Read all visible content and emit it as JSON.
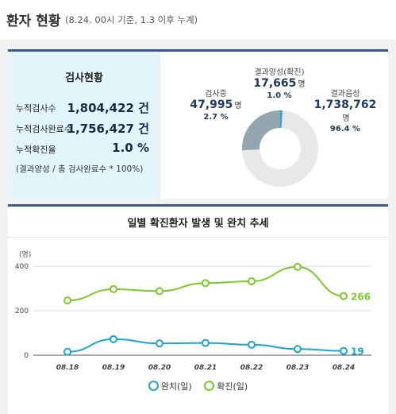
{
  "header": {
    "title": "환자 현황",
    "subtitle": "(8.24. 00시 기준, 1.3 이후 누계)"
  },
  "test_status": {
    "title": "검사현황",
    "rows": [
      {
        "label": "누적검사수",
        "value": "1,804,422 건"
      },
      {
        "label": "누적검사완료수",
        "value": "1,756,427 건"
      },
      {
        "label": "누적확진율",
        "value": "1.0 %"
      }
    ],
    "note": "(결과양성 / 총 검사완료수 * 100%)"
  },
  "donut": {
    "testing": {
      "name": "검사중",
      "value": "47,995",
      "unit": "명",
      "pct": "2.7 %"
    },
    "positive": {
      "name": "결과양성(확진)",
      "value": "17,665",
      "unit": "명",
      "pct": "1.0 %"
    },
    "negative": {
      "name": "결과음성",
      "value": "1,738,762",
      "unit": "명",
      "pct": "96.4 %"
    },
    "colors": {
      "testing": "#93a5ae",
      "positive": "#2aa8dd",
      "negative": "#e8e8e8"
    }
  },
  "chart_panel": {
    "title": "일별 확진환자 발생 및 완치 추세"
  },
  "chart_data": {
    "type": "line",
    "title": "일별 확진환자 발생 및 완치 추세",
    "unit_label": "(명)",
    "categories": [
      "08.18",
      "08.19",
      "08.20",
      "08.21",
      "08.22",
      "08.23",
      "08.24"
    ],
    "yticks": [
      "400",
      "200",
      "0"
    ],
    "ylim": [
      0,
      400
    ],
    "grid": true,
    "legend_position": "bottom",
    "series": [
      {
        "name": "완치(일)",
        "color": "#1ba3d4",
        "values": [
          15,
          72,
          53,
          55,
          47,
          28,
          19
        ],
        "end_label": "19"
      },
      {
        "name": "확진(일)",
        "color": "#7cc92a",
        "values": [
          246,
          297,
          288,
          324,
          332,
          397,
          266
        ],
        "end_label": "266"
      }
    ]
  }
}
